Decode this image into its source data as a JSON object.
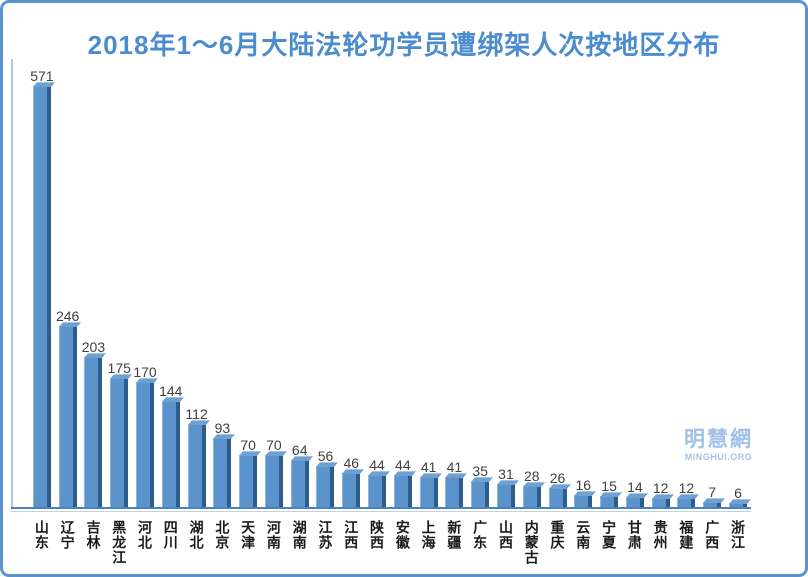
{
  "title": "2018年1～6月大陆法轮功学员遭绑架人次按地区分布",
  "watermark": {
    "name": "明慧網",
    "site": "MINGHUI.ORG"
  },
  "chart_data": {
    "type": "bar",
    "title": "2018年1～6月大陆法轮功学员遭绑架人次按地区分布",
    "categories": [
      "山东",
      "辽宁",
      "吉林",
      "黑龙江",
      "河北",
      "四川",
      "湖北",
      "北京",
      "天津",
      "河南",
      "湖南",
      "江苏",
      "江西",
      "陕西",
      "安徽",
      "上海",
      "新疆",
      "广东",
      "山西",
      "内蒙古",
      "重庆",
      "云南",
      "宁夏",
      "甘肃",
      "贵州",
      "福建",
      "广西",
      "浙江"
    ],
    "values": [
      571,
      246,
      203,
      175,
      170,
      144,
      112,
      93,
      70,
      70,
      64,
      56,
      46,
      44,
      44,
      41,
      41,
      35,
      31,
      28,
      26,
      16,
      15,
      14,
      12,
      12,
      7,
      6
    ],
    "xlabel": "",
    "ylabel": "",
    "ylim": [
      0,
      600
    ],
    "grid": false,
    "legend": false,
    "value_labels": true,
    "y_axis_ticks_visible": false,
    "bar_color": "#5b93cc",
    "bar_side_color": "#2e5d8c",
    "bar_top_color": "#6fa0d0",
    "value_label_color": "#404040",
    "category_label_color": "#1a1a1a",
    "axis_line_color": "#4e81bb",
    "title_color": "#4a8ccd",
    "frame_border_color": "#5b94cc",
    "watermark_color": "#a0c1e6"
  }
}
